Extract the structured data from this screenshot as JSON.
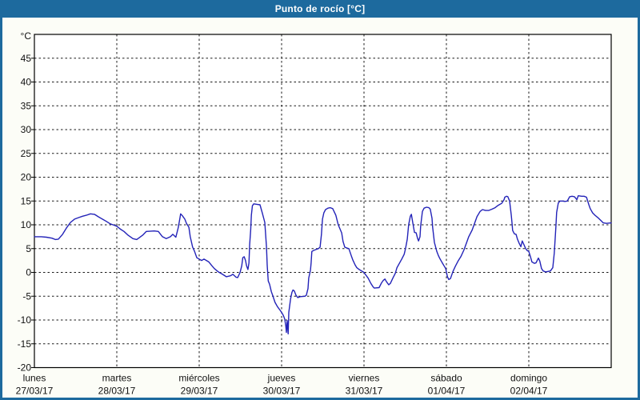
{
  "window": {
    "title": "Punto de rocío [°C]"
  },
  "colors": {
    "chrome_blue": "#1d6a9e",
    "titlebar_text": "#ffffff",
    "content_bg": "#fcfdf7",
    "plot_bg": "#ffffff",
    "frame_color": "#000000",
    "grid_color": "#1a1a1a",
    "axis_text": "#111111",
    "line_color": "#2323b8"
  },
  "chart_data": {
    "type": "line",
    "title": "Punto de rocío [°C]",
    "ylabel": "°C",
    "ylim": [
      -20,
      50
    ],
    "yticks": [
      -20,
      -15,
      -10,
      -5,
      0,
      5,
      10,
      15,
      20,
      25,
      30,
      35,
      40,
      45
    ],
    "grid": "dashed",
    "legend": "none",
    "x_unit": "hours_since_monday_00",
    "xlim": [
      0,
      168
    ],
    "day_span_hours": 24,
    "x_day_labels": [
      {
        "name": "lunes",
        "date": "27/03/17",
        "hour": 0
      },
      {
        "name": "martes",
        "date": "28/03/17",
        "hour": 24
      },
      {
        "name": "miércoles",
        "date": "29/03/17",
        "hour": 48
      },
      {
        "name": "jueves",
        "date": "30/03/17",
        "hour": 72
      },
      {
        "name": "viernes",
        "date": "31/03/17",
        "hour": 96
      },
      {
        "name": "sábado",
        "date": "01/04/17",
        "hour": 120
      },
      {
        "name": "domingo",
        "date": "02/04/17",
        "hour": 144
      }
    ],
    "series": [
      {
        "name": "Punto de rocío [°C]",
        "points": [
          [
            0,
            7.5
          ],
          [
            2,
            7.5
          ],
          [
            3.5,
            7.4
          ],
          [
            5.1,
            7.2
          ],
          [
            6.1,
            6.9
          ],
          [
            7,
            7
          ],
          [
            8.2,
            8
          ],
          [
            9.3,
            9.3
          ],
          [
            10.5,
            10.5
          ],
          [
            11.7,
            11.2
          ],
          [
            12.8,
            11.5
          ],
          [
            14,
            11.8
          ],
          [
            15.1,
            12
          ],
          [
            16.3,
            12.3
          ],
          [
            17.5,
            12.2
          ],
          [
            18.6,
            11.7
          ],
          [
            19.8,
            11.2
          ],
          [
            21,
            10.7
          ],
          [
            22.1,
            10.2
          ],
          [
            23.3,
            9.9
          ],
          [
            24,
            9.7
          ],
          [
            25.2,
            9
          ],
          [
            26.1,
            8.6
          ],
          [
            27.3,
            7.8
          ],
          [
            28.7,
            7.1
          ],
          [
            29.8,
            6.9
          ],
          [
            31.5,
            7.8
          ],
          [
            32.6,
            8.6
          ],
          [
            34.9,
            8.7
          ],
          [
            36.1,
            8.6
          ],
          [
            37.3,
            7.5
          ],
          [
            38.4,
            7.1
          ],
          [
            39.6,
            7.5
          ],
          [
            40.3,
            8
          ],
          [
            41.2,
            7.4
          ],
          [
            41.9,
            9.4
          ],
          [
            42.4,
            11.5
          ],
          [
            42.6,
            12.3
          ],
          [
            43.1,
            11.9
          ],
          [
            43.8,
            11.2
          ],
          [
            44.3,
            10.3
          ],
          [
            45,
            9.5
          ],
          [
            45.4,
            7.5
          ],
          [
            46.1,
            5.3
          ],
          [
            46.6,
            4.5
          ],
          [
            47.3,
            3.1
          ],
          [
            48,
            2.8
          ],
          [
            48.7,
            2.5
          ],
          [
            49.4,
            2.8
          ],
          [
            50.1,
            2.5
          ],
          [
            50.8,
            2.2
          ],
          [
            51.7,
            1.4
          ],
          [
            52.4,
            0.8
          ],
          [
            53.6,
            0.1
          ],
          [
            54.8,
            -0.4
          ],
          [
            55.9,
            -0.9
          ],
          [
            57.1,
            -0.7
          ],
          [
            57.8,
            -0.4
          ],
          [
            58.7,
            -1
          ],
          [
            59.2,
            -1.1
          ],
          [
            59.9,
            0
          ],
          [
            60.4,
            1.4
          ],
          [
            60.7,
            3.1
          ],
          [
            61.1,
            3.3
          ],
          [
            61.5,
            2.5
          ],
          [
            61.8,
            1.4
          ],
          [
            62.2,
            0.6
          ],
          [
            62.5,
            2
          ],
          [
            62.7,
            5.9
          ],
          [
            63,
            9
          ],
          [
            63.2,
            12
          ],
          [
            63.5,
            14
          ],
          [
            63.9,
            14.4
          ],
          [
            64.8,
            14.3
          ],
          [
            65.7,
            14.2
          ],
          [
            66.4,
            12.4
          ],
          [
            67.1,
            10.5
          ],
          [
            67.6,
            5.4
          ],
          [
            67.8,
            1.5
          ],
          [
            68.1,
            -1.8
          ],
          [
            68.5,
            -2.5
          ],
          [
            69,
            -4
          ],
          [
            69.4,
            -4.8
          ],
          [
            70.1,
            -6.3
          ],
          [
            70.8,
            -7.2
          ],
          [
            71.5,
            -7.9
          ],
          [
            72,
            -8.4
          ],
          [
            72.5,
            -9
          ],
          [
            72.9,
            -9.8
          ],
          [
            73.2,
            -11.2
          ],
          [
            73.4,
            -12.6
          ],
          [
            73.6,
            -10.1
          ],
          [
            73.9,
            -12.9
          ],
          [
            74.1,
            -8.4
          ],
          [
            74.6,
            -5.6
          ],
          [
            75,
            -4.2
          ],
          [
            75.3,
            -3.7
          ],
          [
            75.7,
            -3.9
          ],
          [
            76.2,
            -4.8
          ],
          [
            76.7,
            -5.3
          ],
          [
            77.4,
            -5.1
          ],
          [
            78.8,
            -5
          ],
          [
            79.2,
            -4.8
          ],
          [
            79.7,
            -3.4
          ],
          [
            79.9,
            -1.2
          ],
          [
            80.4,
            0.5
          ],
          [
            80.6,
            2
          ],
          [
            80.8,
            4.4
          ],
          [
            81.3,
            4.6
          ],
          [
            82,
            4.8
          ],
          [
            82.7,
            5
          ],
          [
            83.2,
            5.3
          ],
          [
            83.6,
            8
          ],
          [
            83.9,
            11.2
          ],
          [
            84.3,
            12.5
          ],
          [
            84.8,
            13.2
          ],
          [
            85.5,
            13.5
          ],
          [
            86.2,
            13.6
          ],
          [
            86.9,
            13.4
          ],
          [
            87.8,
            12
          ],
          [
            88.5,
            10
          ],
          [
            89.5,
            8.3
          ],
          [
            89.9,
            6.5
          ],
          [
            90.4,
            5.3
          ],
          [
            91.1,
            5.1
          ],
          [
            91.6,
            5
          ],
          [
            92.3,
            3.5
          ],
          [
            92.7,
            2.7
          ],
          [
            93.4,
            1.6
          ],
          [
            93.9,
            1
          ],
          [
            94.6,
            0.6
          ],
          [
            95.3,
            0.3
          ],
          [
            96,
            0
          ],
          [
            96.5,
            -0.5
          ],
          [
            97.2,
            -1.2
          ],
          [
            97.9,
            -2.2
          ],
          [
            98.6,
            -3
          ],
          [
            99,
            -3.3
          ],
          [
            100.4,
            -3.2
          ],
          [
            101.1,
            -2.2
          ],
          [
            101.6,
            -1.7
          ],
          [
            102.1,
            -1.4
          ],
          [
            102.5,
            -1.9
          ],
          [
            103.2,
            -2.6
          ],
          [
            103.7,
            -2.3
          ],
          [
            104.4,
            -1.2
          ],
          [
            105.1,
            -0.2
          ],
          [
            105.6,
            1
          ],
          [
            106.3,
            1.9
          ],
          [
            107,
            2.8
          ],
          [
            107.7,
            3.8
          ],
          [
            108.1,
            5
          ],
          [
            108.6,
            7
          ],
          [
            109,
            10
          ],
          [
            109.5,
            11.8
          ],
          [
            109.8,
            12.2
          ],
          [
            110.2,
            10.5
          ],
          [
            110.7,
            8.4
          ],
          [
            111.2,
            8.3
          ],
          [
            111.6,
            7.2
          ],
          [
            111.9,
            6.6
          ],
          [
            112.3,
            7.5
          ],
          [
            112.5,
            9.7
          ],
          [
            113,
            12.8
          ],
          [
            113.5,
            13.5
          ],
          [
            114.2,
            13.7
          ],
          [
            114.9,
            13.6
          ],
          [
            115.3,
            13.3
          ],
          [
            115.8,
            11.4
          ],
          [
            116,
            9.5
          ],
          [
            116.5,
            6.3
          ],
          [
            117.2,
            4.4
          ],
          [
            117.7,
            3.5
          ],
          [
            118.1,
            2.9
          ],
          [
            118.8,
            2
          ],
          [
            119.3,
            1.4
          ],
          [
            119.8,
            0.8
          ],
          [
            120.3,
            -0.9
          ],
          [
            120.7,
            -1.5
          ],
          [
            121.2,
            -1.3
          ],
          [
            121.9,
            0.2
          ],
          [
            122.6,
            1.3
          ],
          [
            123.5,
            2.5
          ],
          [
            124.2,
            3.3
          ],
          [
            125.1,
            4.7
          ],
          [
            125.8,
            6.1
          ],
          [
            126.5,
            7.5
          ],
          [
            127.5,
            8.9
          ],
          [
            128.2,
            10.3
          ],
          [
            128.9,
            11.7
          ],
          [
            129.8,
            12.8
          ],
          [
            130.5,
            13.2
          ],
          [
            131.4,
            13
          ],
          [
            132.3,
            13
          ],
          [
            133.3,
            13.3
          ],
          [
            134.2,
            13.6
          ],
          [
            135.1,
            14.1
          ],
          [
            136.1,
            14.5
          ],
          [
            136.8,
            15.3
          ],
          [
            137,
            15.8
          ],
          [
            137.5,
            16
          ],
          [
            137.9,
            15.9
          ],
          [
            138.4,
            15
          ],
          [
            138.9,
            12
          ],
          [
            139.1,
            10.4
          ],
          [
            139.3,
            8.8
          ],
          [
            139.8,
            8.1
          ],
          [
            140.3,
            8
          ],
          [
            140.7,
            7
          ],
          [
            141.2,
            6.1
          ],
          [
            141.7,
            5.4
          ],
          [
            142.1,
            6.6
          ],
          [
            142.6,
            5.8
          ],
          [
            143.1,
            5
          ],
          [
            143.5,
            4.6
          ],
          [
            144,
            4.4
          ],
          [
            144.5,
            3.3
          ],
          [
            144.9,
            2.2
          ],
          [
            145.6,
            1.9
          ],
          [
            146.1,
            2
          ],
          [
            146.8,
            3
          ],
          [
            147.2,
            2.4
          ],
          [
            147.7,
            0.8
          ],
          [
            148.2,
            0.3
          ],
          [
            148.9,
            0.1
          ],
          [
            149.6,
            0.2
          ],
          [
            150.3,
            0.3
          ],
          [
            151,
            1
          ],
          [
            151.4,
            4
          ],
          [
            151.7,
            7.2
          ],
          [
            151.9,
            9.7
          ],
          [
            152.1,
            12.6
          ],
          [
            152.6,
            14.6
          ],
          [
            153.1,
            15
          ],
          [
            153.8,
            15
          ],
          [
            154.5,
            14.9
          ],
          [
            155.2,
            15
          ],
          [
            155.9,
            15.9
          ],
          [
            156.6,
            16
          ],
          [
            157.3,
            15.9
          ],
          [
            158,
            15.3
          ],
          [
            158.4,
            16.1
          ],
          [
            159.4,
            16
          ],
          [
            160.1,
            16
          ],
          [
            160.8,
            15.8
          ],
          [
            161.5,
            14.2
          ],
          [
            161.9,
            13.4
          ],
          [
            162.6,
            12.5
          ],
          [
            163.3,
            12
          ],
          [
            164.3,
            11.4
          ],
          [
            165,
            10.9
          ],
          [
            165.7,
            10.4
          ],
          [
            166.6,
            10.3
          ],
          [
            168,
            10.4
          ]
        ]
      }
    ]
  }
}
